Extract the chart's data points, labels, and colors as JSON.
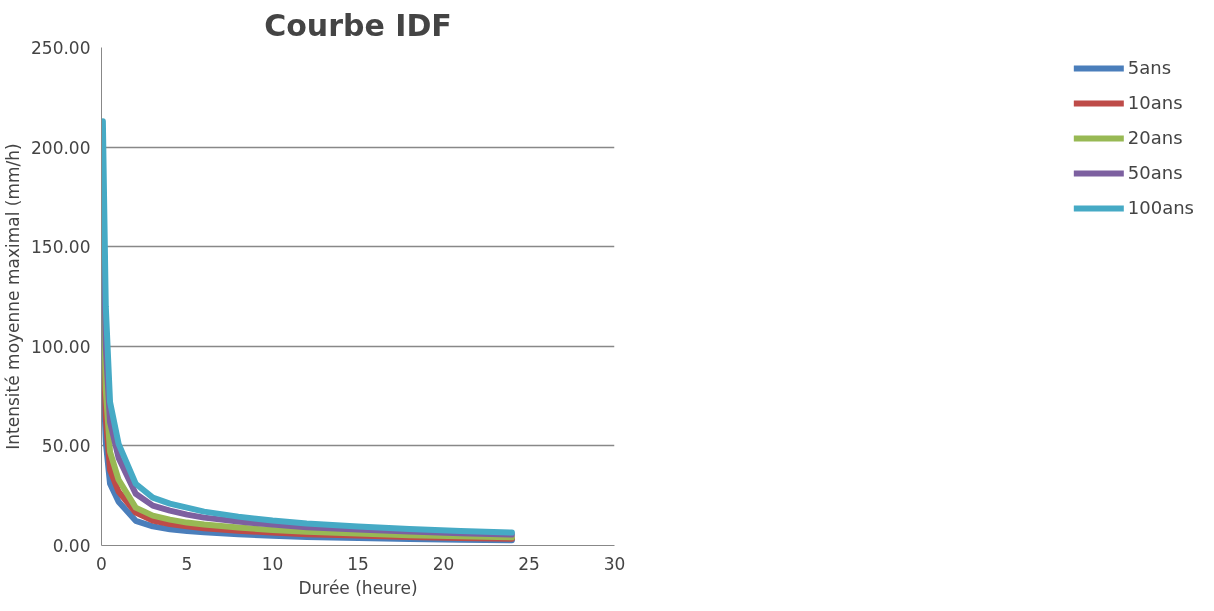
{
  "chart_data": {
    "type": "line",
    "title": "Courbe IDF",
    "xlabel": "Durée (heure)",
    "ylabel": "Intensité moyenne maximal (mm/h)",
    "x": [
      0.08,
      0.25,
      0.5,
      1,
      2,
      3,
      4,
      5,
      6,
      8,
      10,
      12,
      15,
      18,
      21,
      24
    ],
    "series": [
      {
        "name": "5ans",
        "color": "#4a7ebb",
        "values": [
          92,
          52,
          31,
          22,
          12.4,
          9.6,
          8.2,
          7.3,
          6.6,
          5.6,
          4.9,
          4.3,
          3.8,
          3.3,
          2.9,
          2.6
        ]
      },
      {
        "name": "10ans",
        "color": "#be4b48",
        "values": [
          114,
          64,
          38,
          27,
          16.5,
          12.5,
          10.8,
          9.6,
          8.7,
          7.4,
          6.5,
          5.7,
          5,
          4.3,
          3.8,
          3.4
        ]
      },
      {
        "name": "20ans",
        "color": "#98b954",
        "values": [
          139,
          78,
          47,
          33,
          19,
          15,
          13,
          11.5,
          10.5,
          9,
          7.8,
          6.9,
          6,
          5.2,
          4.6,
          4.1
        ]
      },
      {
        "name": "50ans",
        "color": "#7d60a0",
        "values": [
          178,
          100,
          62,
          44,
          26,
          20,
          17.5,
          15.5,
          14,
          12,
          10.5,
          9.2,
          8,
          7,
          6.2,
          5.5
        ]
      },
      {
        "name": "100ans",
        "color": "#46aac5",
        "values": [
          213,
          120,
          72,
          51,
          31,
          24,
          21,
          19,
          17,
          14.5,
          12.5,
          11,
          9.5,
          8.3,
          7.3,
          6.5
        ]
      }
    ],
    "xlim": [
      0,
      30
    ],
    "xticks": [
      0,
      5,
      10,
      15,
      20,
      25,
      30
    ],
    "ylim": [
      0,
      250
    ],
    "yticks": [
      {
        "value": 0,
        "label": "0.00"
      },
      {
        "value": 50,
        "label": "50.00"
      },
      {
        "value": 100,
        "label": "100.00"
      },
      {
        "value": 150,
        "label": "150.00"
      },
      {
        "value": 200,
        "label": "200.00"
      },
      {
        "value": 250,
        "label": "250.00"
      }
    ],
    "grid": "y",
    "legend": "right",
    "marker": "none",
    "line_style": "solid"
  }
}
